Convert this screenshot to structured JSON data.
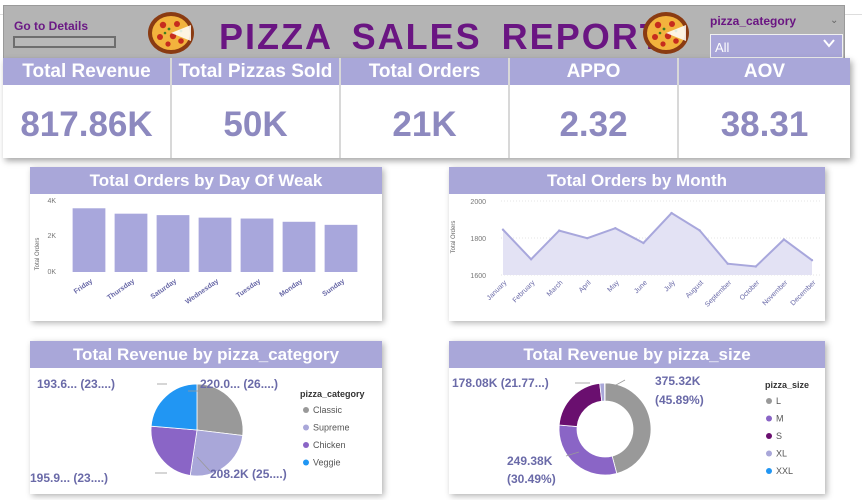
{
  "header": {
    "go_details": "Go to Details",
    "title": "PIZZA  SALES  REPORT",
    "slicer_label": "pizza_category",
    "slicer_value": "All"
  },
  "kpis": [
    {
      "label": "Total Revenue",
      "value": "817.86K"
    },
    {
      "label": "Total Pizzas Sold",
      "value": "50K"
    },
    {
      "label": "Total Orders",
      "value": "21K"
    },
    {
      "label": "APPO",
      "value": "2.32"
    },
    {
      "label": "AOV",
      "value": "38.31"
    }
  ],
  "colors": {
    "header_bg": "#b4b4b4",
    "title": "#6a1582",
    "kpi_header": "#a9a7d9",
    "kpi_value": "#8d89bf",
    "bar": "#a8a7dc",
    "line": "#a8a7dc",
    "area": "#e3e2f4"
  },
  "day_chart": {
    "title": "Total Orders by Day Of Weak",
    "ylabel": "Total Orders",
    "yticks": [
      "4K",
      "2K",
      "0K"
    ],
    "chart_data": {
      "type": "bar",
      "categories": [
        "Friday",
        "Thursday",
        "Saturday",
        "Wednesday",
        "Tuesday",
        "Monday",
        "Sunday"
      ],
      "values": [
        3540,
        3240,
        3160,
        3020,
        2970,
        2790,
        2620
      ],
      "ylim": [
        0,
        4000
      ]
    }
  },
  "month_chart": {
    "title": "Total Orders by Month",
    "ylabel": "Total Orders",
    "yticks": [
      "2000",
      "1800",
      "1600"
    ],
    "chart_data": {
      "type": "area",
      "categories": [
        "January",
        "February",
        "March",
        "April",
        "May",
        "June",
        "July",
        "August",
        "September",
        "October",
        "November",
        "December"
      ],
      "values": [
        1845,
        1685,
        1840,
        1799,
        1853,
        1773,
        1935,
        1841,
        1661,
        1646,
        1792,
        1680
      ],
      "ylim": [
        1600,
        2000
      ]
    }
  },
  "category_chart": {
    "title": "Total Revenue by pizza_category",
    "legend_title": "pizza_category",
    "chart_data": {
      "type": "pie",
      "categories": [
        "Classic",
        "Supreme",
        "Chicken",
        "Veggie"
      ],
      "values": [
        220.05,
        208.2,
        195.92,
        193.69
      ],
      "colors": [
        "#999999",
        "#a9a7d9",
        "#8a65c6",
        "#2196f3"
      ]
    },
    "labels": {
      "Classic": "220.0... (26....)",
      "Supreme": "208.2K (25....)",
      "Chicken": "195.9... (23....)",
      "Veggie": "193.6... (23....)"
    }
  },
  "size_chart": {
    "title": "Total Revenue by pizza_size",
    "legend_title": "pizza_size",
    "chart_data": {
      "type": "pie",
      "donut": true,
      "categories": [
        "L",
        "M",
        "S",
        "XL",
        "XXL"
      ],
      "values": [
        375.32,
        249.38,
        178.08,
        14.08,
        1.0
      ],
      "colors": [
        "#999999",
        "#8a65c6",
        "#6a0f6f",
        "#a9a7d9",
        "#2196f3"
      ]
    },
    "labels": {
      "L_value": "375.32K",
      "L_pct": "(45.89%)",
      "M_value": "249.38K",
      "M_pct": "(30.49%)",
      "S": "178.08K (21.77...)"
    }
  }
}
